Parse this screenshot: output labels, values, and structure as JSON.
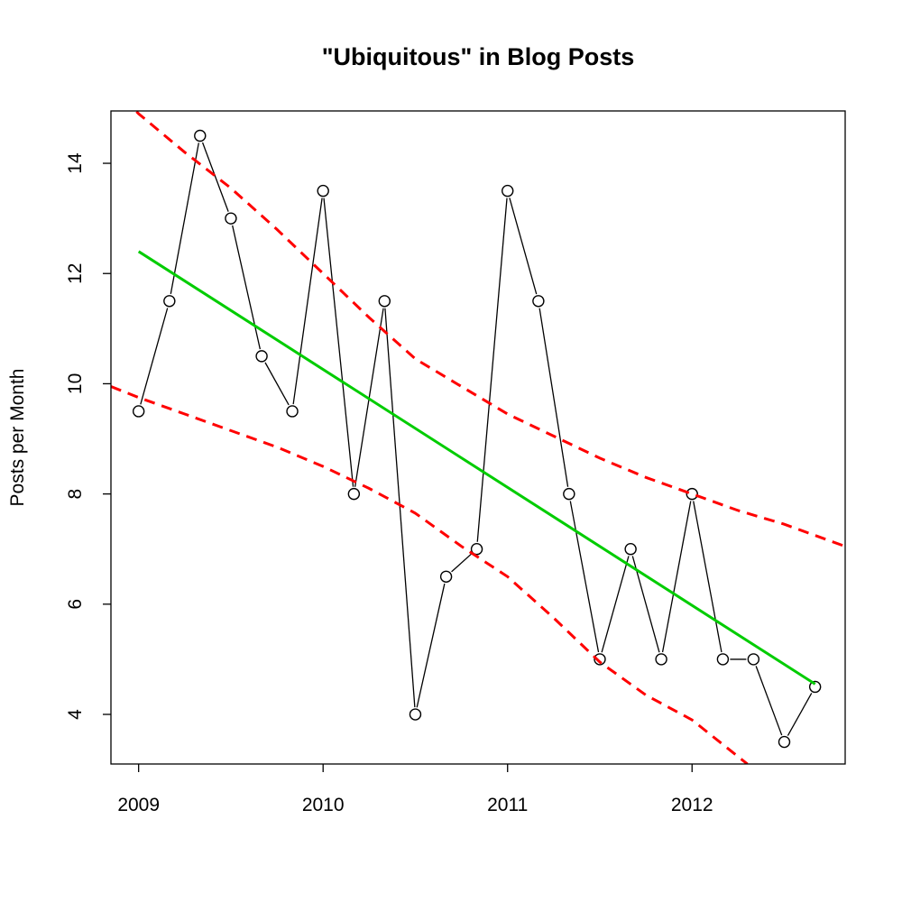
{
  "chart_data": {
    "type": "line",
    "title": "\"Ubiquitous\" in Blog Posts",
    "xlabel": "",
    "ylabel": "Posts per Month",
    "xlim": [
      2008.85,
      2012.83
    ],
    "ylim": [
      3.1,
      14.95
    ],
    "x_ticks": [
      2009,
      2010,
      2011,
      2012
    ],
    "x_tick_labels": [
      "2009",
      "2010",
      "2011",
      "2012"
    ],
    "y_ticks": [
      4,
      6,
      8,
      10,
      12,
      14
    ],
    "y_tick_labels": [
      "4",
      "6",
      "8",
      "10",
      "12",
      "14"
    ],
    "grid": false,
    "legend": "none",
    "series": [
      {
        "style": "line-with-open-circles",
        "color": "#000000",
        "x": [
          2009.0,
          2009.167,
          2009.333,
          2009.5,
          2009.667,
          2009.833,
          2010.0,
          2010.167,
          2010.333,
          2010.5,
          2010.667,
          2010.833,
          2011.0,
          2011.167,
          2011.333,
          2011.5,
          2011.667,
          2011.833,
          2012.0,
          2012.167,
          2012.333,
          2012.5,
          2012.667
        ],
        "y": [
          9.5,
          11.5,
          14.5,
          13,
          10.5,
          9.5,
          13.5,
          8,
          11.5,
          4,
          6.5,
          7,
          13.5,
          11.5,
          8,
          5,
          7,
          5,
          8,
          5,
          5,
          3.5,
          4.5
        ]
      },
      {
        "style": "solid-line",
        "color": "#00cc00",
        "x": [
          2009.0,
          2012.667
        ],
        "y": [
          12.4,
          4.55
        ]
      },
      {
        "style": "dashed-line",
        "color": "#ff0000",
        "x": [
          2008.85,
          2009.0,
          2009.25,
          2009.5,
          2009.75,
          2010.0,
          2010.25,
          2010.5,
          2010.75,
          2011.0,
          2011.25,
          2011.5,
          2011.75,
          2012.0,
          2012.25,
          2012.5,
          2012.83
        ],
        "y": [
          15.4,
          14.9,
          14.2,
          13.55,
          12.8,
          12.0,
          11.2,
          10.45,
          9.95,
          9.45,
          9.05,
          8.65,
          8.3,
          8.0,
          7.7,
          7.45,
          7.05
        ]
      },
      {
        "style": "dashed-line",
        "color": "#ff0000",
        "x": [
          2008.85,
          2009.0,
          2009.25,
          2009.5,
          2009.75,
          2010.0,
          2010.25,
          2010.5,
          2010.75,
          2011.0,
          2011.25,
          2011.5,
          2011.75,
          2012.0,
          2012.15,
          2012.3
        ],
        "y": [
          9.95,
          9.75,
          9.45,
          9.15,
          8.85,
          8.5,
          8.1,
          7.65,
          7.05,
          6.5,
          5.75,
          4.95,
          4.35,
          3.9,
          3.5,
          3.1
        ]
      }
    ]
  }
}
